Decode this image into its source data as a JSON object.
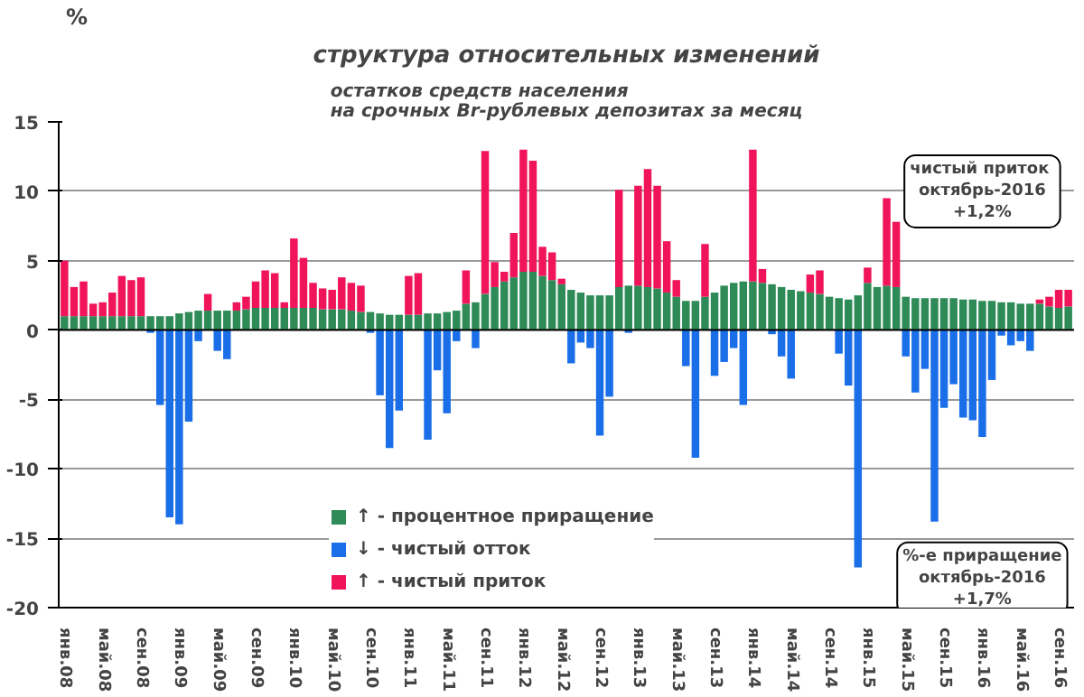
{
  "chart_data": {
    "type": "bar",
    "stacked": true,
    "title": "структура относительных изменений",
    "subtitle": "остатков средств населения\nна срочных Br-рублевых депозитах за месяц",
    "ylabel": "%",
    "categories": [
      "янв.08",
      null,
      null,
      null,
      "май.08",
      null,
      null,
      null,
      "сен.08",
      null,
      null,
      null,
      "янв.09",
      null,
      null,
      null,
      "май.09",
      null,
      null,
      null,
      "сен.09",
      null,
      null,
      null,
      "янв.10",
      null,
      null,
      null,
      "май.10",
      null,
      null,
      null,
      "сен.10",
      null,
      null,
      null,
      "янв.11",
      null,
      null,
      null,
      "май.11",
      null,
      null,
      null,
      "сен.11",
      null,
      null,
      null,
      "янв.12",
      null,
      null,
      null,
      "май.12",
      null,
      null,
      null,
      "сен.12",
      null,
      null,
      null,
      "янв.13",
      null,
      null,
      null,
      "май.13",
      null,
      null,
      null,
      "сен.13",
      null,
      null,
      null,
      "янв.14",
      null,
      null,
      null,
      "май.14",
      null,
      null,
      null,
      "сен.14",
      null,
      null,
      null,
      "янв.15",
      null,
      null,
      null,
      "май.15",
      null,
      null,
      null,
      "сен.15",
      null,
      null,
      null,
      "янв.16",
      null,
      null,
      null,
      "май.16",
      null,
      null,
      null,
      "сен.16",
      null
    ],
    "series": [
      {
        "name": "↑ - процентное приращение",
        "color": "#2e8b57",
        "values": [
          1.0,
          1.0,
          1.0,
          1.0,
          1.0,
          1.0,
          1.0,
          1.0,
          1.0,
          1.0,
          1.0,
          1.0,
          1.2,
          1.3,
          1.4,
          1.4,
          1.4,
          1.4,
          1.4,
          1.5,
          1.6,
          1.6,
          1.6,
          1.6,
          1.6,
          1.6,
          1.6,
          1.5,
          1.5,
          1.5,
          1.4,
          1.3,
          1.3,
          1.2,
          1.1,
          1.1,
          1.1,
          1.1,
          1.2,
          1.2,
          1.3,
          1.4,
          1.9,
          2.0,
          2.6,
          3.1,
          3.5,
          3.8,
          4.2,
          4.2,
          3.9,
          3.6,
          3.3,
          2.9,
          2.7,
          2.5,
          2.5,
          2.5,
          3.1,
          3.2,
          3.2,
          3.1,
          3.0,
          2.7,
          2.4,
          2.1,
          2.1,
          2.4,
          2.7,
          3.2,
          3.4,
          3.5,
          3.5,
          3.4,
          3.3,
          3.1,
          2.9,
          2.8,
          2.7,
          2.6,
          2.4,
          2.3,
          2.2,
          2.5,
          3.4,
          3.1,
          3.2,
          3.1,
          2.4,
          2.3,
          2.3,
          2.3,
          2.3,
          2.3,
          2.2,
          2.2,
          2.1,
          2.1,
          2.0,
          2.0,
          1.9,
          1.9,
          1.9,
          1.7,
          1.6,
          1.7
        ]
      },
      {
        "name": "↓ - чистый отток",
        "color": "#1a6fe8",
        "values": [
          null,
          null,
          null,
          null,
          null,
          null,
          null,
          null,
          null,
          -0.2,
          -5.4,
          -13.5,
          -14.0,
          -6.6,
          -0.8,
          null,
          -1.5,
          -2.1,
          null,
          null,
          null,
          null,
          null,
          null,
          null,
          null,
          null,
          null,
          null,
          null,
          null,
          null,
          -0.2,
          -4.7,
          -8.5,
          -5.8,
          null,
          null,
          -7.9,
          -2.9,
          -6.0,
          -0.8,
          null,
          -1.3,
          null,
          null,
          null,
          null,
          null,
          null,
          null,
          null,
          null,
          -2.4,
          -0.9,
          -1.3,
          -7.6,
          -4.8,
          null,
          -0.2,
          null,
          null,
          null,
          null,
          null,
          -2.6,
          -9.2,
          null,
          -3.3,
          -2.3,
          -1.3,
          -5.4,
          null,
          null,
          -0.3,
          -1.9,
          -3.5,
          null,
          null,
          null,
          null,
          -1.7,
          -4.0,
          -17.1,
          null,
          null,
          null,
          null,
          -1.9,
          -4.5,
          -2.8,
          -13.8,
          -5.6,
          -3.9,
          -6.3,
          -6.5,
          -7.7,
          -3.6,
          -0.4,
          -1.1,
          -0.8,
          -1.5,
          null,
          null,
          null,
          null
        ]
      },
      {
        "name": "↑ - чистый приток",
        "color": "#f0145a",
        "values": [
          4.0,
          2.1,
          2.5,
          0.9,
          1.0,
          1.7,
          2.9,
          2.6,
          2.8,
          null,
          null,
          null,
          null,
          null,
          null,
          1.2,
          null,
          null,
          0.6,
          0.9,
          1.9,
          2.7,
          2.5,
          0.4,
          5.0,
          3.6,
          1.8,
          1.5,
          1.4,
          2.3,
          2.0,
          1.9,
          null,
          null,
          null,
          null,
          2.8,
          3.0,
          null,
          null,
          null,
          null,
          2.4,
          null,
          10.3,
          1.8,
          0.7,
          3.2,
          8.8,
          8.0,
          2.1,
          2.0,
          0.4,
          null,
          null,
          null,
          null,
          null,
          7.0,
          null,
          7.2,
          8.5,
          7.4,
          3.7,
          1.2,
          null,
          null,
          3.8,
          null,
          null,
          null,
          null,
          9.5,
          1.0,
          null,
          null,
          null,
          null,
          1.3,
          1.7,
          null,
          null,
          null,
          null,
          1.1,
          null,
          6.3,
          4.7,
          null,
          null,
          null,
          null,
          null,
          null,
          null,
          null,
          null,
          null,
          null,
          null,
          null,
          null,
          0.3,
          0.7,
          1.3,
          1.2
        ]
      }
    ],
    "ylim": [
      -20,
      15
    ],
    "yticks": [
      -20,
      -15,
      -10,
      -5,
      0,
      5,
      10,
      15
    ],
    "grid": "y",
    "legend": "bottom",
    "annotations": [
      "чистый  приток\nоктябрь-2016\n+1,2%",
      "%-е приращение\nоктябрь-2016\n+1,7%"
    ]
  }
}
